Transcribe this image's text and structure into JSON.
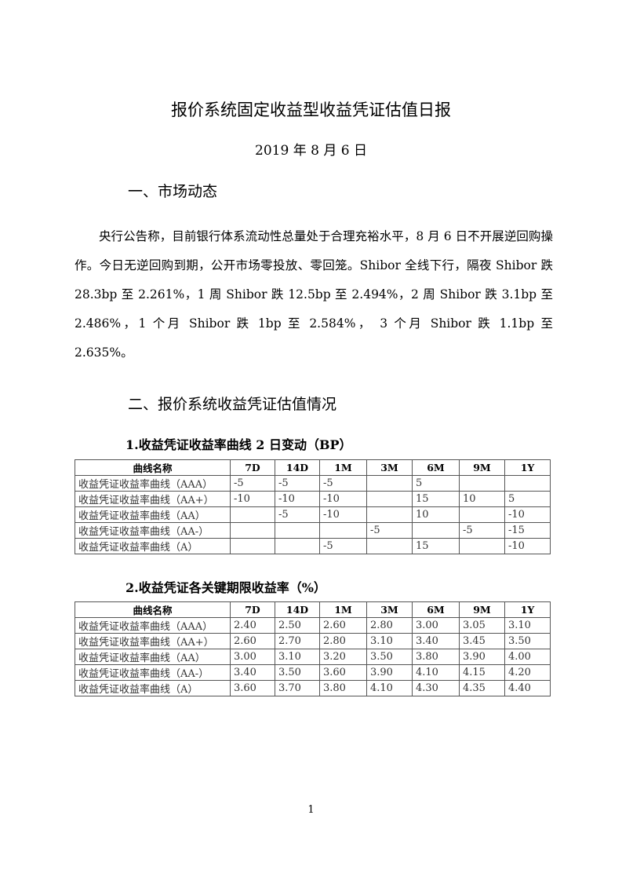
{
  "title": "报价系统固定收益型收益凭证估值日报",
  "date": "2019 年 8 月 6 日",
  "section1": "一、市场动态",
  "paragraph": "央行公告称，目前银行体系流动性总量处于合理充裕水平，8 月 6 日不开展逆回购操作。今日无逆回购到期，公开市场零投放、零回笼。Shibor 全线下行，隔夜 Shibor 跌 28.3bp 至 2.261%，1 周 Shibor 跌 12.5bp 至 2.494%，2 周 Shibor 跌 3.1bp 至 2.486%，1 个月 Shibor 跌 1bp 至 2.584%， 3 个月 Shibor 跌 1.1bp 至 2.635%。",
  "section2": "二、报价系统收益凭证估值情况",
  "table1": {
    "caption": "1.收益凭证收益率曲线 2 日变动（BP）",
    "headers": [
      "曲线名称",
      "7D",
      "14D",
      "1M",
      "3M",
      "6M",
      "9M",
      "1Y"
    ],
    "rows": [
      [
        "收益凭证收益率曲线（AAA）",
        "-5",
        "-5",
        "-5",
        "",
        "5",
        "",
        ""
      ],
      [
        "收益凭证收益率曲线（AA+）",
        "-10",
        "-10",
        "-10",
        "",
        "15",
        "10",
        "5"
      ],
      [
        "收益凭证收益率曲线（AA）",
        "",
        "-5",
        "-10",
        "",
        "10",
        "",
        "-10"
      ],
      [
        "收益凭证收益率曲线（AA-）",
        "",
        "",
        "",
        "-5",
        "",
        "-5",
        "-15"
      ],
      [
        "收益凭证收益率曲线（A）",
        "",
        "",
        "-5",
        "",
        "15",
        "",
        "-10"
      ]
    ]
  },
  "table2": {
    "caption": "2.收益凭证各关键期限收益率（%）",
    "headers": [
      "曲线名称",
      "7D",
      "14D",
      "1M",
      "3M",
      "6M",
      "9M",
      "1Y"
    ],
    "rows": [
      [
        "收益凭证收益率曲线（AAA）",
        "2.40",
        "2.50",
        "2.60",
        "2.80",
        "3.00",
        "3.05",
        "3.10"
      ],
      [
        "收益凭证收益率曲线（AA+）",
        "2.60",
        "2.70",
        "2.80",
        "3.10",
        "3.40",
        "3.45",
        "3.50"
      ],
      [
        "收益凭证收益率曲线（AA）",
        "3.00",
        "3.10",
        "3.20",
        "3.50",
        "3.80",
        "3.90",
        "4.00"
      ],
      [
        "收益凭证收益率曲线（AA-）",
        "3.40",
        "3.50",
        "3.60",
        "3.90",
        "4.10",
        "4.15",
        "4.20"
      ],
      [
        "收益凭证收益率曲线（A）",
        "3.60",
        "3.70",
        "3.80",
        "4.10",
        "4.30",
        "4.35",
        "4.40"
      ]
    ]
  },
  "page_number": "1"
}
